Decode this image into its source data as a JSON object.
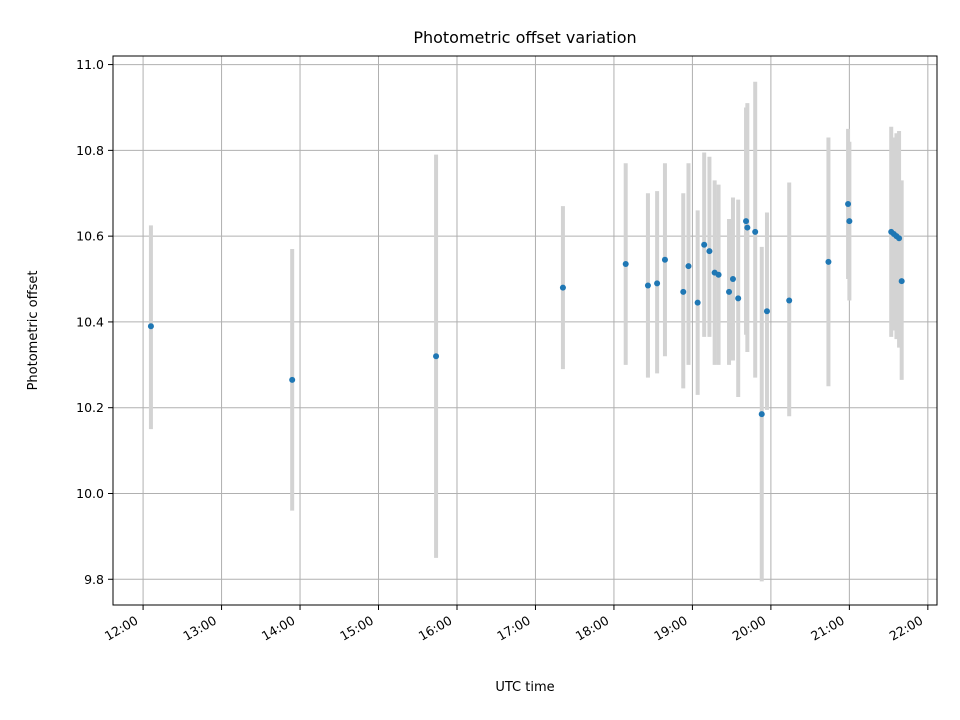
{
  "chart_data": {
    "type": "scatter",
    "title": "Photometric offset variation",
    "xlabel": "UTC time",
    "ylabel": "Photometric offset",
    "xlim": [
      "11:37",
      "22:07"
    ],
    "ylim": [
      9.74,
      11.02
    ],
    "xticks": [
      "12:00",
      "13:00",
      "14:00",
      "15:00",
      "16:00",
      "17:00",
      "18:00",
      "19:00",
      "20:00",
      "21:00",
      "22:00"
    ],
    "yticks": [
      "9.8",
      "10.0",
      "10.2",
      "10.4",
      "10.6",
      "10.8",
      "11.0"
    ],
    "grid": true,
    "points": [
      {
        "x": "12:06",
        "y": 10.39,
        "ylow": 10.15,
        "yhigh": 10.625
      },
      {
        "x": "13:54",
        "y": 10.265,
        "ylow": 9.96,
        "yhigh": 10.57
      },
      {
        "x": "15:44",
        "y": 10.32,
        "ylow": 9.85,
        "yhigh": 10.79
      },
      {
        "x": "17:21",
        "y": 10.48,
        "ylow": 10.29,
        "yhigh": 10.67
      },
      {
        "x": "18:09",
        "y": 10.535,
        "ylow": 10.3,
        "yhigh": 10.77
      },
      {
        "x": "18:26",
        "y": 10.485,
        "ylow": 10.27,
        "yhigh": 10.7
      },
      {
        "x": "18:33",
        "y": 10.49,
        "ylow": 10.28,
        "yhigh": 10.705
      },
      {
        "x": "18:39",
        "y": 10.545,
        "ylow": 10.32,
        "yhigh": 10.77
      },
      {
        "x": "18:53",
        "y": 10.47,
        "ylow": 10.245,
        "yhigh": 10.7
      },
      {
        "x": "18:57",
        "y": 10.53,
        "ylow": 10.3,
        "yhigh": 10.77
      },
      {
        "x": "19:04",
        "y": 10.445,
        "ylow": 10.23,
        "yhigh": 10.66
      },
      {
        "x": "19:09",
        "y": 10.58,
        "ylow": 10.365,
        "yhigh": 10.795
      },
      {
        "x": "19:13",
        "y": 10.565,
        "ylow": 10.365,
        "yhigh": 10.785
      },
      {
        "x": "19:17",
        "y": 10.515,
        "ylow": 10.3,
        "yhigh": 10.73
      },
      {
        "x": "19:20",
        "y": 10.51,
        "ylow": 10.3,
        "yhigh": 10.72
      },
      {
        "x": "19:28",
        "y": 10.47,
        "ylow": 10.3,
        "yhigh": 10.64
      },
      {
        "x": "19:31",
        "y": 10.5,
        "ylow": 10.31,
        "yhigh": 10.69
      },
      {
        "x": "19:35",
        "y": 10.455,
        "ylow": 10.225,
        "yhigh": 10.685
      },
      {
        "x": "19:41",
        "y": 10.635,
        "ylow": 10.37,
        "yhigh": 10.9
      },
      {
        "x": "19:42",
        "y": 10.62,
        "ylow": 10.33,
        "yhigh": 10.91
      },
      {
        "x": "19:48",
        "y": 10.61,
        "ylow": 10.27,
        "yhigh": 10.96
      },
      {
        "x": "19:53",
        "y": 10.185,
        "ylow": 9.795,
        "yhigh": 10.575
      },
      {
        "x": "19:57",
        "y": 10.425,
        "ylow": 10.195,
        "yhigh": 10.655
      },
      {
        "x": "20:14",
        "y": 10.45,
        "ylow": 10.18,
        "yhigh": 10.725
      },
      {
        "x": "20:44",
        "y": 10.54,
        "ylow": 10.25,
        "yhigh": 10.83
      },
      {
        "x": "20:59",
        "y": 10.675,
        "ylow": 10.5,
        "yhigh": 10.85
      },
      {
        "x": "21:00",
        "y": 10.635,
        "ylow": 10.45,
        "yhigh": 10.82
      },
      {
        "x": "21:32",
        "y": 10.61,
        "ylow": 10.365,
        "yhigh": 10.855
      },
      {
        "x": "21:34",
        "y": 10.605,
        "ylow": 10.38,
        "yhigh": 10.83
      },
      {
        "x": "21:36",
        "y": 10.6,
        "ylow": 10.36,
        "yhigh": 10.84
      },
      {
        "x": "21:38",
        "y": 10.595,
        "ylow": 10.34,
        "yhigh": 10.845
      },
      {
        "x": "21:40",
        "y": 10.495,
        "ylow": 10.265,
        "yhigh": 10.73
      }
    ],
    "colors": {
      "point": "#1f77b4",
      "errorbar": "#d3d3d3",
      "grid": "#b0b0b0"
    }
  }
}
